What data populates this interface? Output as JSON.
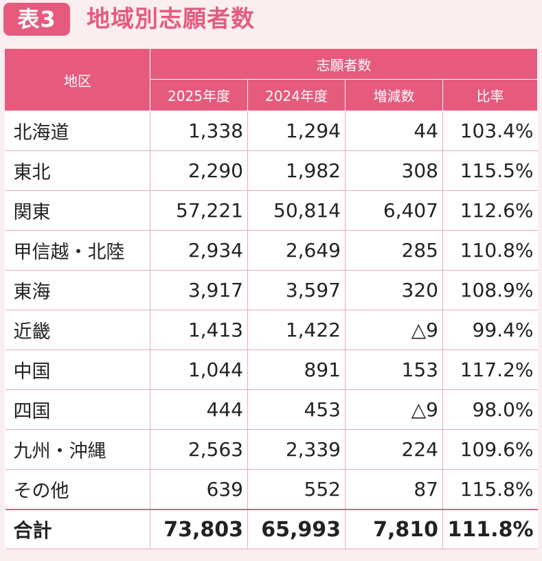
{
  "header": {
    "badge": "表3",
    "title": "地域別志願者数"
  },
  "table": {
    "region_header": "地区",
    "group_header": "志願者数",
    "columns": [
      "2025年度",
      "2024年度",
      "増減数",
      "比率"
    ],
    "rows": [
      {
        "region": "北海道",
        "y2025": "1,338",
        "y2024": "1,294",
        "diff": "44",
        "ratio": "103.4%"
      },
      {
        "region": "東北",
        "y2025": "2,290",
        "y2024": "1,982",
        "diff": "308",
        "ratio": "115.5%"
      },
      {
        "region": "関東",
        "y2025": "57,221",
        "y2024": "50,814",
        "diff": "6,407",
        "ratio": "112.6%"
      },
      {
        "region": "甲信越・北陸",
        "y2025": "2,934",
        "y2024": "2,649",
        "diff": "285",
        "ratio": "110.8%"
      },
      {
        "region": "東海",
        "y2025": "3,917",
        "y2024": "3,597",
        "diff": "320",
        "ratio": "108.9%"
      },
      {
        "region": "近畿",
        "y2025": "1,413",
        "y2024": "1,422",
        "diff": "△9",
        "ratio": "99.4%"
      },
      {
        "region": "中国",
        "y2025": "1,044",
        "y2024": "891",
        "diff": "153",
        "ratio": "117.2%"
      },
      {
        "region": "四国",
        "y2025": "444",
        "y2024": "453",
        "diff": "△9",
        "ratio": "98.0%"
      },
      {
        "region": "九州・沖縄",
        "y2025": "2,563",
        "y2024": "2,339",
        "diff": "224",
        "ratio": "109.6%"
      },
      {
        "region": "その他",
        "y2025": "639",
        "y2024": "552",
        "diff": "87",
        "ratio": "115.8%"
      }
    ],
    "total": {
      "region": "合計",
      "y2025": "73,803",
      "y2024": "65,993",
      "diff": "7,810",
      "ratio": "111.8%"
    }
  },
  "colors": {
    "accent": "#e65a7e",
    "page_background": "#fbeef0",
    "grid_line": "#e7a9b7"
  }
}
